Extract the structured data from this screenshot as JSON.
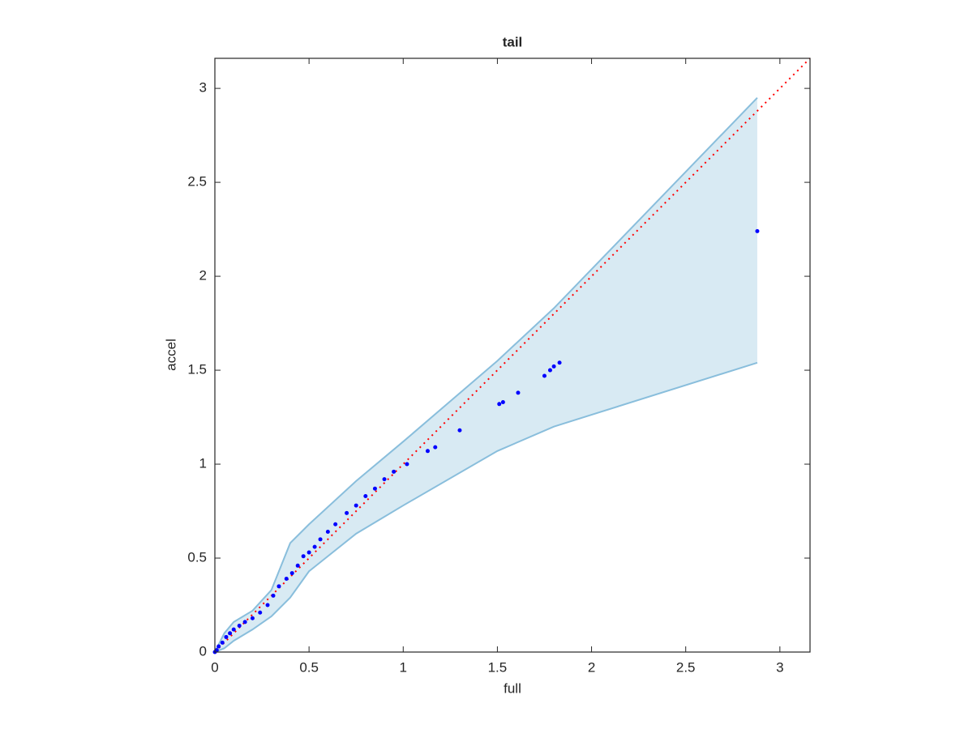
{
  "chart_data": {
    "type": "scatter",
    "title": "tail",
    "x_label": "full",
    "y_label": "accel",
    "color": "#0000ff",
    "x": [
      0,
      0.01,
      0.02,
      0.04,
      0.06,
      0.08,
      0.1,
      0.13,
      0.16,
      0.2,
      0.24,
      0.28,
      0.31,
      0.34,
      0.38,
      0.41,
      0.44,
      0.47,
      0.5,
      0.53,
      0.56,
      0.6,
      0.64,
      0.7,
      0.75,
      0.8,
      0.85,
      0.9,
      0.95,
      1.02,
      1.13,
      1.17,
      1.3,
      1.51,
      1.53,
      1.61,
      1.75,
      1.78,
      1.8,
      1.83,
      2.88
    ],
    "values": [
      0,
      0.01,
      0.03,
      0.05,
      0.08,
      0.1,
      0.12,
      0.14,
      0.16,
      0.18,
      0.21,
      0.25,
      0.3,
      0.35,
      0.39,
      0.42,
      0.46,
      0.51,
      0.53,
      0.56,
      0.6,
      0.64,
      0.68,
      0.74,
      0.78,
      0.83,
      0.87,
      0.92,
      0.96,
      1.0,
      1.07,
      1.09,
      1.18,
      1.32,
      1.33,
      1.38,
      1.47,
      1.5,
      1.52,
      1.54,
      2.24
    ],
    "band_color": "#89bedc",
    "band_x": [
      0,
      0.05,
      0.1,
      0.2,
      0.3,
      0.4,
      0.45,
      0.5,
      0.75,
      1,
      1.5,
      1.8,
      2.88
    ],
    "band_upper": [
      0,
      0.1,
      0.16,
      0.22,
      0.33,
      0.58,
      0.63,
      0.68,
      0.91,
      1.12,
      1.55,
      1.83,
      2.95
    ],
    "band_lower": [
      0,
      0.02,
      0.06,
      0.12,
      0.19,
      0.29,
      0.36,
      0.43,
      0.63,
      0.78,
      1.07,
      1.2,
      1.54
    ],
    "line_color": "#ff0000",
    "xlim": [
      0,
      3.16
    ],
    "ylim": [
      0,
      3.16
    ],
    "xticks": [
      0,
      0.5,
      1,
      1.5,
      2,
      2.5,
      3
    ],
    "yticks": [
      0,
      0.5,
      1,
      1.5,
      2,
      2.5,
      3
    ],
    "grid": false
  }
}
